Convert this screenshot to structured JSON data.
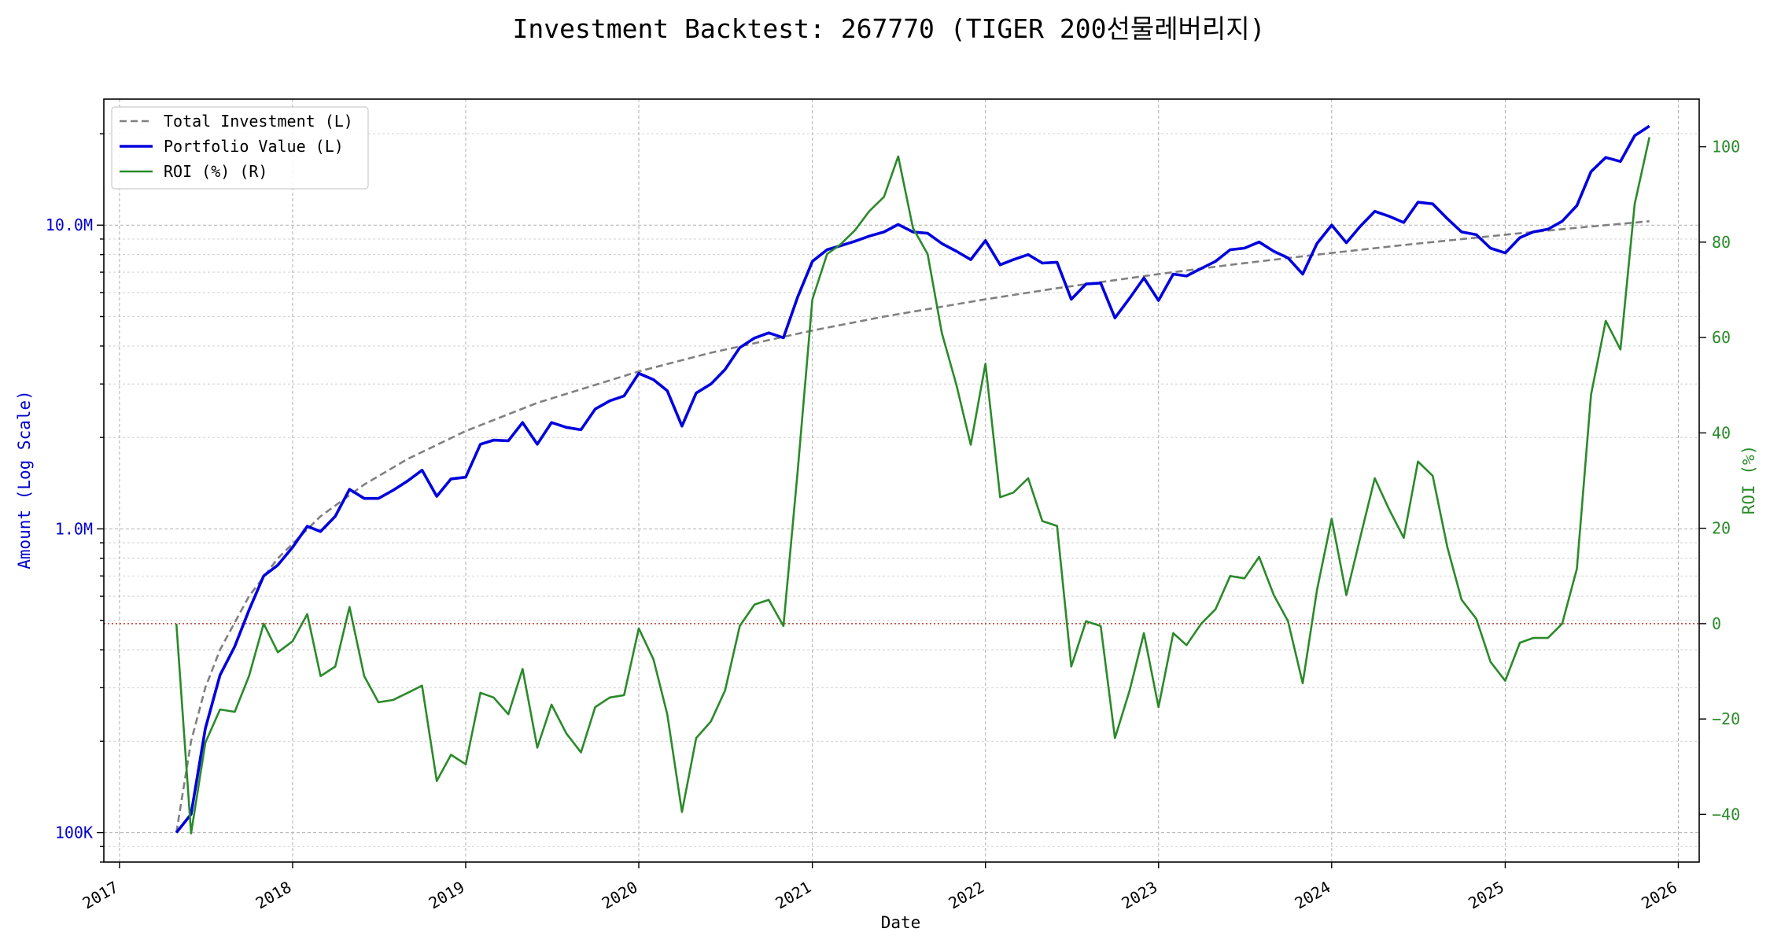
{
  "chart_data": {
    "type": "line",
    "title": "Investment Backtest: 267770 (TIGER 200선물레버리지)",
    "xlabel": "Date",
    "ylabel_left": "Amount (Log Scale)",
    "ylabel_right": "ROI (%)",
    "x_range": [
      "2016-11-29",
      "2026-02-14"
    ],
    "y_left_range": [
      80000,
      26000000
    ],
    "y_left_scale": "log",
    "y_right_range": [
      -50,
      110
    ],
    "grid": true,
    "legend_position": "top-left",
    "x_ticks": [
      {
        "date": "2017-01-01",
        "label": "2017"
      },
      {
        "date": "2018-01-01",
        "label": "2018"
      },
      {
        "date": "2019-01-01",
        "label": "2019"
      },
      {
        "date": "2020-01-01",
        "label": "2020"
      },
      {
        "date": "2021-01-01",
        "label": "2021"
      },
      {
        "date": "2022-01-01",
        "label": "2022"
      },
      {
        "date": "2023-01-01",
        "label": "2023"
      },
      {
        "date": "2024-01-01",
        "label": "2024"
      },
      {
        "date": "2025-01-01",
        "label": "2025"
      },
      {
        "date": "2026-01-01",
        "label": "2026"
      }
    ],
    "y_left_ticks": [
      {
        "value": 100000,
        "label": "100K"
      },
      {
        "value": 1000000,
        "label": "1.0M"
      },
      {
        "value": 10000000,
        "label": "10.0M"
      }
    ],
    "y_right_ticks": [
      {
        "value": -40,
        "label": "−40"
      },
      {
        "value": -20,
        "label": "−20"
      },
      {
        "value": 0,
        "label": "0"
      },
      {
        "value": 20,
        "label": "20"
      },
      {
        "value": 40,
        "label": "40"
      },
      {
        "value": 60,
        "label": "60"
      },
      {
        "value": 80,
        "label": "80"
      },
      {
        "value": 100,
        "label": "100"
      }
    ],
    "zero_line": {
      "axis": "right",
      "value": 0,
      "color": "#c0392b"
    },
    "series": [
      {
        "name": "Total Investment (L)",
        "axis": "left",
        "color": "#808080",
        "style": "dashed",
        "x": [
          "2017-05-01",
          "2017-06-01",
          "2017-07-01",
          "2017-08-01",
          "2017-10-01",
          "2017-12-01",
          "2018-03-01",
          "2018-06-01",
          "2018-09-01",
          "2019-01-01",
          "2019-06-01",
          "2020-01-01",
          "2020-06-01",
          "2021-01-01",
          "2021-06-01",
          "2022-01-01",
          "2022-06-01",
          "2023-01-01",
          "2023-06-01",
          "2024-01-01",
          "2024-06-01",
          "2025-01-01",
          "2025-06-01",
          "2025-11-01"
        ],
        "y": [
          100000,
          200000,
          300000,
          400000,
          600000,
          800000,
          1100000,
          1400000,
          1700000,
          2100000,
          2600000,
          3300000,
          3800000,
          4500000,
          5000000,
          5700000,
          6200000,
          6900000,
          7400000,
          8100000,
          8600000,
          9300000,
          9800000,
          10300000
        ]
      },
      {
        "name": "Portfolio Value (L)",
        "axis": "left",
        "color": "#0000dd",
        "style": "solid",
        "x": [
          "2017-05-01",
          "2017-06-01",
          "2017-07-01",
          "2017-08-01",
          "2017-09-01",
          "2017-10-01",
          "2017-11-01",
          "2017-12-01",
          "2018-01-01",
          "2018-02-01",
          "2018-03-01",
          "2018-04-01",
          "2018-05-01",
          "2018-06-01",
          "2018-07-01",
          "2018-08-01",
          "2018-09-01",
          "2018-10-01",
          "2018-11-01",
          "2018-12-01",
          "2019-01-01",
          "2019-02-01",
          "2019-03-01",
          "2019-04-01",
          "2019-05-01",
          "2019-06-01",
          "2019-07-01",
          "2019-08-01",
          "2019-09-01",
          "2019-10-01",
          "2019-11-01",
          "2019-12-01",
          "2020-01-01",
          "2020-02-01",
          "2020-03-01",
          "2020-04-01",
          "2020-05-01",
          "2020-06-01",
          "2020-07-01",
          "2020-08-01",
          "2020-09-01",
          "2020-10-01",
          "2020-11-01",
          "2020-12-01",
          "2021-01-01",
          "2021-02-01",
          "2021-03-01",
          "2021-04-01",
          "2021-05-01",
          "2021-06-01",
          "2021-07-01",
          "2021-08-01",
          "2021-09-01",
          "2021-10-01",
          "2021-11-01",
          "2021-12-01",
          "2022-01-01",
          "2022-02-01",
          "2022-03-01",
          "2022-04-01",
          "2022-05-01",
          "2022-06-01",
          "2022-07-01",
          "2022-08-01",
          "2022-09-01",
          "2022-10-01",
          "2022-11-01",
          "2022-12-01",
          "2023-01-01",
          "2023-02-01",
          "2023-03-01",
          "2023-04-01",
          "2023-05-01",
          "2023-06-01",
          "2023-07-01",
          "2023-08-01",
          "2023-09-01",
          "2023-10-01",
          "2023-11-01",
          "2023-12-01",
          "2024-01-01",
          "2024-02-01",
          "2024-03-01",
          "2024-04-01",
          "2024-05-01",
          "2024-06-01",
          "2024-07-01",
          "2024-08-01",
          "2024-09-01",
          "2024-10-01",
          "2024-11-01",
          "2024-12-01",
          "2025-01-01",
          "2025-02-01",
          "2025-03-01",
          "2025-04-01",
          "2025-05-01",
          "2025-06-01",
          "2025-07-01",
          "2025-08-01",
          "2025-09-01",
          "2025-10-01",
          "2025-11-01"
        ],
        "y": [
          100000,
          115000,
          220000,
          330000,
          410000,
          540000,
          700000,
          760000,
          870000,
          1020000,
          980000,
          1100000,
          1350000,
          1260000,
          1260000,
          1340000,
          1440000,
          1560000,
          1280000,
          1460000,
          1480000,
          1900000,
          1960000,
          1950000,
          2240000,
          1900000,
          2240000,
          2160000,
          2120000,
          2480000,
          2640000,
          2740000,
          3250000,
          3100000,
          2850000,
          2180000,
          2800000,
          3000000,
          3350000,
          3950000,
          4250000,
          4420000,
          4260000,
          5800000,
          7600000,
          8300000,
          8550000,
          8850000,
          9200000,
          9500000,
          10050000,
          9500000,
          9400000,
          8700000,
          8200000,
          7700000,
          8900000,
          7400000,
          7700000,
          8000000,
          7500000,
          7550000,
          5700000,
          6400000,
          6450000,
          4950000,
          5750000,
          6700000,
          5650000,
          6900000,
          6800000,
          7200000,
          7600000,
          8300000,
          8400000,
          8800000,
          8200000,
          7800000,
          6900000,
          8700000,
          10000000,
          8750000,
          9900000,
          11100000,
          10700000,
          10200000,
          11900000,
          11750000,
          10500000,
          9500000,
          9300000,
          8400000,
          8100000,
          9100000,
          9500000,
          9700000,
          10300000,
          11600000,
          15000000,
          16700000,
          16200000,
          19700000,
          21200000
        ]
      },
      {
        "name": "ROI (%) (R)",
        "axis": "right",
        "color": "#2a8a2a",
        "style": "solid",
        "x": [
          "2017-05-01",
          "2017-06-01",
          "2017-07-01",
          "2017-08-01",
          "2017-09-01",
          "2017-10-01",
          "2017-11-01",
          "2017-12-01",
          "2018-01-01",
          "2018-02-01",
          "2018-03-01",
          "2018-04-01",
          "2018-05-01",
          "2018-06-01",
          "2018-07-01",
          "2018-08-01",
          "2018-09-01",
          "2018-10-01",
          "2018-11-01",
          "2018-12-01",
          "2019-01-01",
          "2019-02-01",
          "2019-03-01",
          "2019-04-01",
          "2019-05-01",
          "2019-06-01",
          "2019-07-01",
          "2019-08-01",
          "2019-09-01",
          "2019-10-01",
          "2019-11-01",
          "2019-12-01",
          "2020-01-01",
          "2020-02-01",
          "2020-03-01",
          "2020-04-01",
          "2020-05-01",
          "2020-06-01",
          "2020-07-01",
          "2020-08-01",
          "2020-09-01",
          "2020-10-01",
          "2020-11-01",
          "2020-12-01",
          "2021-01-01",
          "2021-02-01",
          "2021-03-01",
          "2021-04-01",
          "2021-05-01",
          "2021-06-01",
          "2021-07-01",
          "2021-08-01",
          "2021-09-01",
          "2021-10-01",
          "2021-11-01",
          "2021-12-01",
          "2022-01-01",
          "2022-02-01",
          "2022-03-01",
          "2022-04-01",
          "2022-05-01",
          "2022-06-01",
          "2022-07-01",
          "2022-08-01",
          "2022-09-01",
          "2022-10-01",
          "2022-11-01",
          "2022-12-01",
          "2023-01-01",
          "2023-02-01",
          "2023-03-01",
          "2023-04-01",
          "2023-05-01",
          "2023-06-01",
          "2023-07-01",
          "2023-08-01",
          "2023-09-01",
          "2023-10-01",
          "2023-11-01",
          "2023-12-01",
          "2024-01-01",
          "2024-02-01",
          "2024-03-01",
          "2024-04-01",
          "2024-05-01",
          "2024-06-01",
          "2024-07-01",
          "2024-08-01",
          "2024-09-01",
          "2024-10-01",
          "2024-11-01",
          "2024-12-01",
          "2025-01-01",
          "2025-02-01",
          "2025-03-01",
          "2025-04-01",
          "2025-05-01",
          "2025-06-01",
          "2025-07-01",
          "2025-08-01",
          "2025-09-01",
          "2025-10-01",
          "2025-11-01"
        ],
        "y": [
          0,
          -44,
          -25,
          -18,
          -18.5,
          -11,
          0,
          -6,
          -3.7,
          2,
          -11,
          -9,
          3.5,
          -11,
          -16.5,
          -16,
          -14.5,
          -13,
          -33,
          -27.5,
          -29.5,
          -14.5,
          -15.5,
          -19,
          -9.5,
          -26,
          -17,
          -23,
          -27,
          -17.5,
          -15.5,
          -15,
          -1,
          -7.5,
          -19,
          -39.5,
          -24,
          -20.5,
          -14,
          -0.5,
          4,
          5,
          -0.5,
          32,
          68,
          77.5,
          79.5,
          82.5,
          86.5,
          89.5,
          98,
          83,
          77.5,
          61,
          50,
          37.5,
          54.5,
          26.5,
          27.5,
          30.5,
          21.5,
          20.5,
          -9,
          0.5,
          -0.5,
          -24,
          -14,
          -2,
          -17.5,
          -2,
          -4.5,
          0,
          3,
          10,
          9.5,
          14,
          6,
          0.5,
          -12.5,
          7,
          22,
          6,
          18,
          30.5,
          24,
          18,
          34,
          31,
          16,
          5,
          1,
          -8,
          -12,
          -4,
          -3,
          -3,
          0,
          11.5,
          48,
          63.5,
          57.5,
          88,
          102
        ]
      }
    ]
  }
}
